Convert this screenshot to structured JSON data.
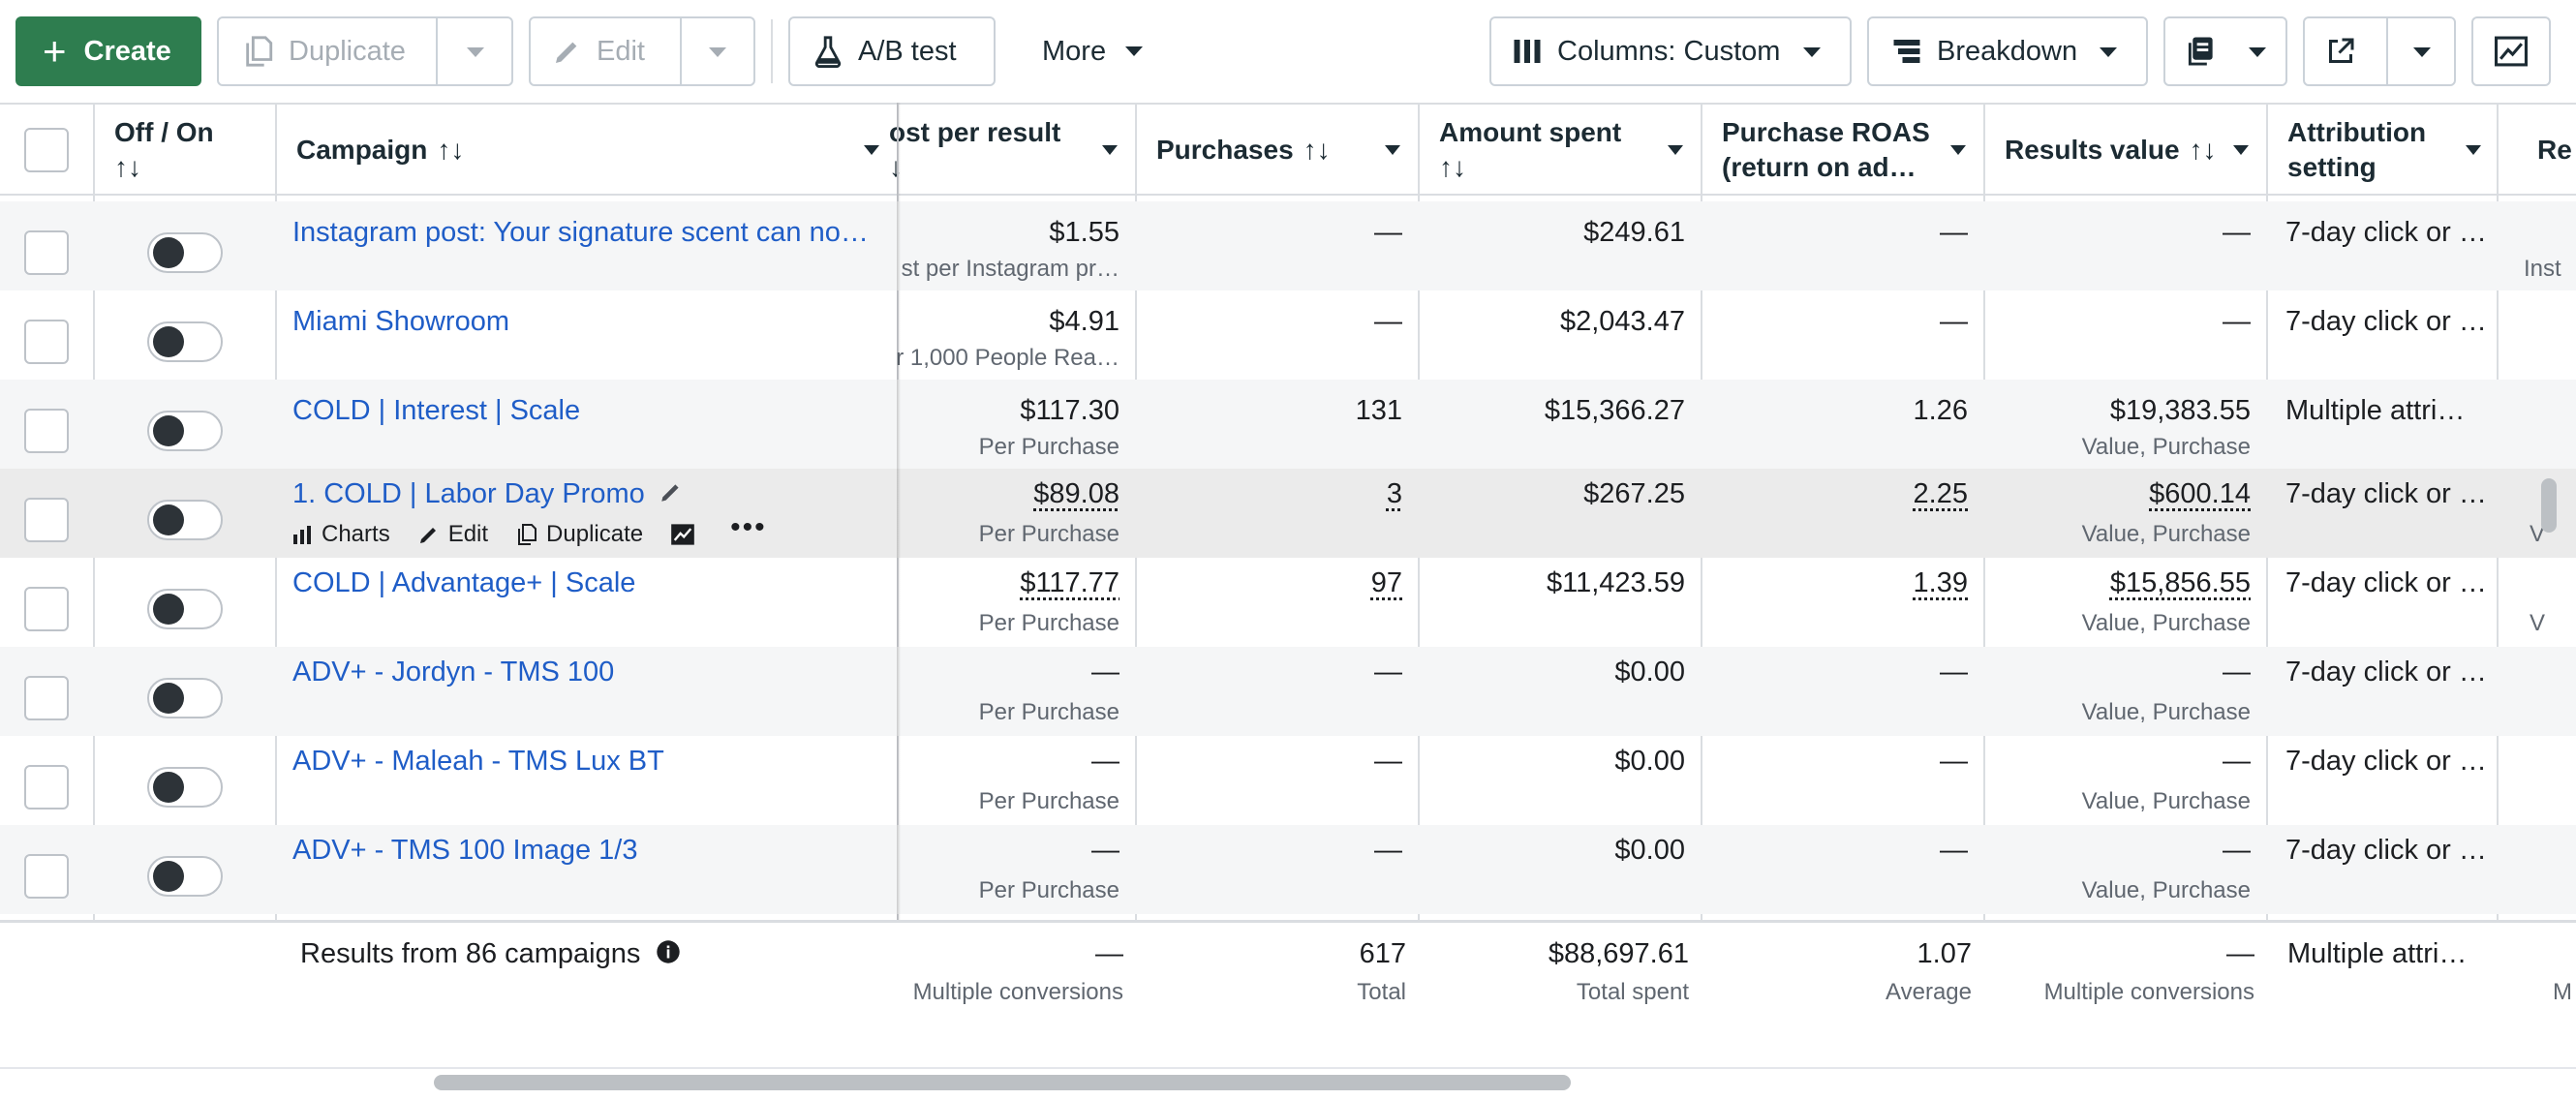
{
  "toolbar": {
    "create": "Create",
    "duplicate": "Duplicate",
    "edit": "Edit",
    "ab_test": "A/B test",
    "more": "More",
    "columns": "Columns: Custom",
    "breakdown": "Breakdown"
  },
  "columns": {
    "off_on": "Off / On",
    "campaign": "Campaign",
    "cost_per_result": "ost per result",
    "purchases": "Purchases",
    "amount_spent": "Amount spent",
    "roas_line1": "Purchase ROAS",
    "roas_line2": "(return on ad…",
    "results_value": "Results value",
    "attribution_line1": "Attribution",
    "attribution_line2": "setting",
    "cutoff": "Re"
  },
  "sort_glyph": "↑↓",
  "rows": [
    {
      "campaign": "Instagram post: Your signature scent can no…",
      "cost": "$1.55",
      "cost_sub": "st per Instagram pr…",
      "purchases": "—",
      "spent": "$249.61",
      "roas": "—",
      "value": "—",
      "value_sub": "",
      "attribution": "7-day click or …",
      "extra": "Inst"
    },
    {
      "campaign": "Miami Showroom",
      "cost": "$4.91",
      "cost_sub": "r 1,000 People Rea…",
      "purchases": "—",
      "spent": "$2,043.47",
      "roas": "—",
      "value": "—",
      "value_sub": "",
      "attribution": "7-day click or …",
      "extra": ""
    },
    {
      "campaign": "COLD | Interest | Scale",
      "cost": "$117.30",
      "cost_sub": "Per Purchase",
      "purchases": "131",
      "spent": "$15,366.27",
      "roas": "1.26",
      "value": "$19,383.55",
      "value_sub": "Value, Purchase",
      "attribution": "Multiple attri…",
      "extra": ""
    },
    {
      "campaign": "1. COLD | Labor Day Promo",
      "cost": "$89.08",
      "cost_sub": "Per Purchase",
      "purchases": "3",
      "spent": "$267.25",
      "roas": "2.25",
      "value": "$600.14",
      "value_sub": "Value, Purchase",
      "attribution": "7-day click or …",
      "extra": "V"
    },
    {
      "campaign": "COLD | Advantage+ | Scale",
      "cost": "$117.77",
      "cost_sub": "Per Purchase",
      "purchases": "97",
      "spent": "$11,423.59",
      "roas": "1.39",
      "value": "$15,856.55",
      "value_sub": "Value, Purchase",
      "attribution": "7-day click or …",
      "extra": "V"
    },
    {
      "campaign": "ADV+ - Jordyn - TMS 100",
      "cost": "—",
      "cost_sub": "Per Purchase",
      "purchases": "—",
      "spent": "$0.00",
      "roas": "—",
      "value": "—",
      "value_sub": "Value, Purchase",
      "attribution": "7-day click or …",
      "extra": ""
    },
    {
      "campaign": "ADV+ - Maleah - TMS Lux BT",
      "cost": "—",
      "cost_sub": "Per Purchase",
      "purchases": "—",
      "spent": "$0.00",
      "roas": "—",
      "value": "—",
      "value_sub": "Value, Purchase",
      "attribution": "7-day click or …",
      "extra": ""
    },
    {
      "campaign": "ADV+ - TMS 100 Image 1/3",
      "cost": "—",
      "cost_sub": "Per Purchase",
      "purchases": "—",
      "spent": "$0.00",
      "roas": "—",
      "value": "—",
      "value_sub": "Value, Purchase",
      "attribution": "7-day click or …",
      "extra": ""
    }
  ],
  "row_actions": {
    "charts": "Charts",
    "edit": "Edit",
    "duplicate": "Duplicate"
  },
  "footer": {
    "label": "Results from 86 campaigns",
    "cost": "—",
    "cost_sub": "Multiple conversions",
    "purchases": "617",
    "purchases_sub": "Total",
    "spent": "$88,697.61",
    "spent_sub": "Total spent",
    "roas": "1.07",
    "roas_sub": "Average",
    "value": "—",
    "value_sub": "Multiple conversions",
    "attribution": "Multiple attri…",
    "extra": "M"
  },
  "colors": {
    "accent_green": "#2e7d4f",
    "link_blue": "#1f5dc7",
    "muted": "#606770",
    "border": "#dadde1"
  }
}
